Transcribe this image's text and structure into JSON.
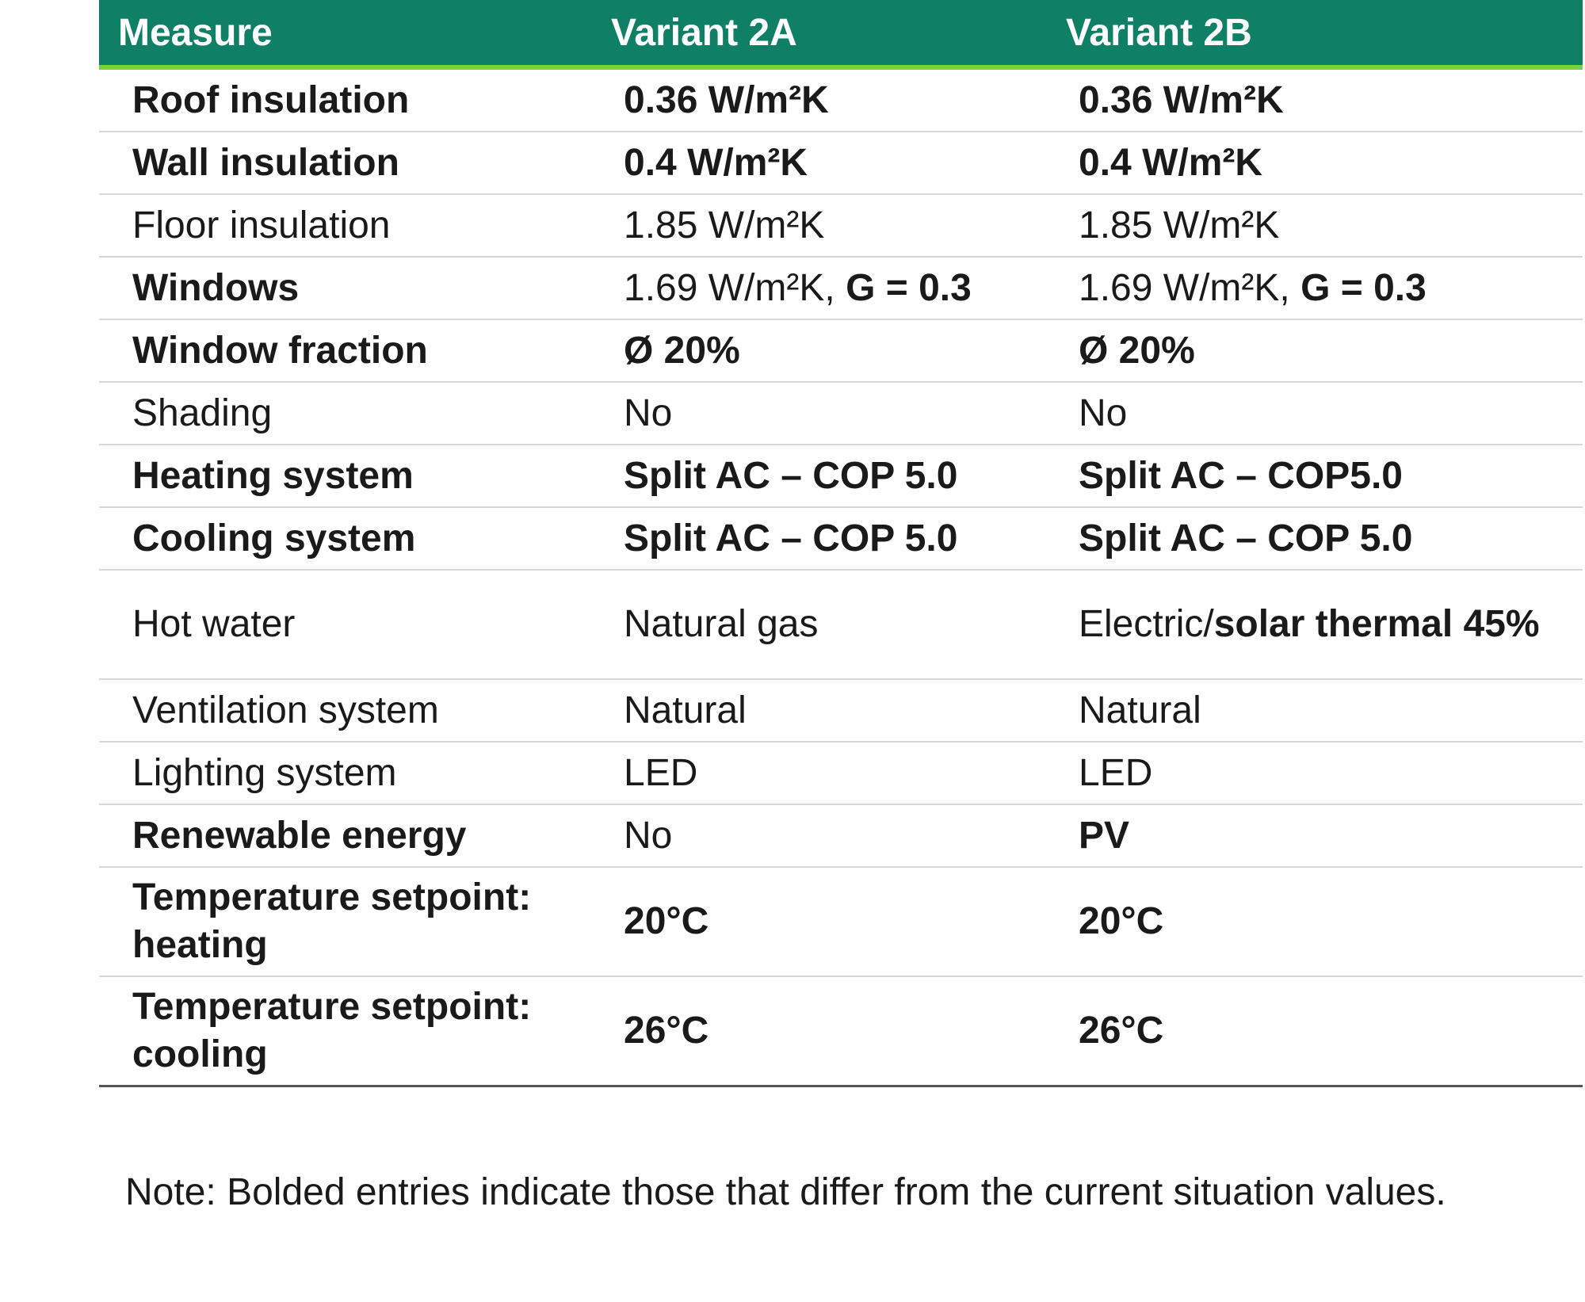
{
  "header": {
    "measure": "Measure",
    "variant_2a": "Variant 2A",
    "variant_2b": "Variant 2B"
  },
  "rows": [
    {
      "label": "Roof insulation",
      "a": "0.36 W/m²K",
      "b": "0.36 W/m²K"
    },
    {
      "label": "Wall insulation",
      "a": "0.4 W/m²K",
      "b": "0.4 W/m²K"
    },
    {
      "label": "Floor insulation",
      "a": "1.85 W/m²K",
      "b": "1.85 W/m²K"
    },
    {
      "label": "Windows",
      "a_plain": "1.69 W/m²K, ",
      "a_bold": "G = 0.3",
      "b_plain": "1.69 W/m²K, ",
      "b_bold": "G = 0.3"
    },
    {
      "label": "Window fraction",
      "a": "Ø 20%",
      "b": "Ø 20%"
    },
    {
      "label": "Shading",
      "a": "No",
      "b": "No"
    },
    {
      "label": "Heating system",
      "a": "Split AC – COP 5.0",
      "b": "Split AC – COP5.0"
    },
    {
      "label": "Cooling system",
      "a": "Split AC – COP 5.0",
      "b": "Split AC – COP 5.0"
    },
    {
      "label": "Hot water",
      "a": "Natural gas",
      "b_plain": "Electric/",
      "b_bold": "solar thermal 45%"
    },
    {
      "label": "Ventilation system",
      "a": "Natural",
      "b": "Natural"
    },
    {
      "label": "Lighting system",
      "a": "LED",
      "b": "LED"
    },
    {
      "label": "Renewable energy",
      "a": "No",
      "b": "PV"
    },
    {
      "label": "Temperature setpoint: heating",
      "a": "20°C",
      "b": "20°C"
    },
    {
      "label": "Temperature setpoint: cooling",
      "a": "26°C",
      "b": "26°C"
    }
  ],
  "note": "Note: Bolded entries indicate those that differ from the current situation values."
}
